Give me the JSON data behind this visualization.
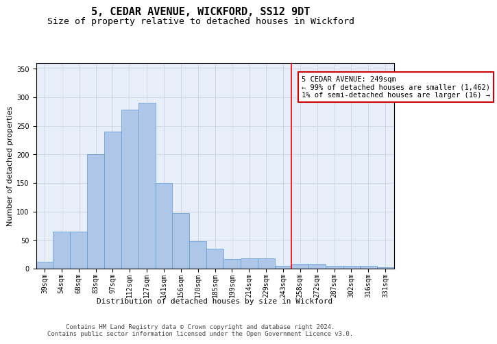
{
  "title": "5, CEDAR AVENUE, WICKFORD, SS12 9DT",
  "subtitle": "Size of property relative to detached houses in Wickford",
  "xlabel": "Distribution of detached houses by size in Wickford",
  "ylabel": "Number of detached properties",
  "categories": [
    "39sqm",
    "54sqm",
    "68sqm",
    "83sqm",
    "97sqm",
    "112sqm",
    "127sqm",
    "141sqm",
    "156sqm",
    "170sqm",
    "185sqm",
    "199sqm",
    "214sqm",
    "229sqm",
    "243sqm",
    "258sqm",
    "272sqm",
    "287sqm",
    "302sqm",
    "316sqm",
    "331sqm"
  ],
  "values": [
    12,
    65,
    65,
    200,
    240,
    278,
    290,
    150,
    97,
    48,
    35,
    17,
    18,
    18,
    5,
    9,
    8,
    5,
    5,
    5,
    3
  ],
  "bar_color": "#aec6e8",
  "bar_edge_color": "#5b9bd5",
  "bar_width": 0.8,
  "ylim": [
    0,
    360
  ],
  "yticks": [
    0,
    50,
    100,
    150,
    200,
    250,
    300,
    350
  ],
  "annotation_line1": "5 CEDAR AVENUE: 249sqm",
  "annotation_line2": "← 99% of detached houses are smaller (1,462)",
  "annotation_line3": "1% of semi-detached houses are larger (16) →",
  "annotation_box_color": "#ffffff",
  "annotation_box_edge_color": "#cc0000",
  "grid_color": "#d0d8e8",
  "background_color": "#e8eef8",
  "footer_line1": "Contains HM Land Registry data © Crown copyright and database right 2024.",
  "footer_line2": "Contains public sector information licensed under the Open Government Licence v3.0.",
  "title_fontsize": 11,
  "subtitle_fontsize": 9.5,
  "axis_label_fontsize": 8,
  "tick_fontsize": 7,
  "annotation_fontsize": 7.5,
  "footer_fontsize": 6.5
}
